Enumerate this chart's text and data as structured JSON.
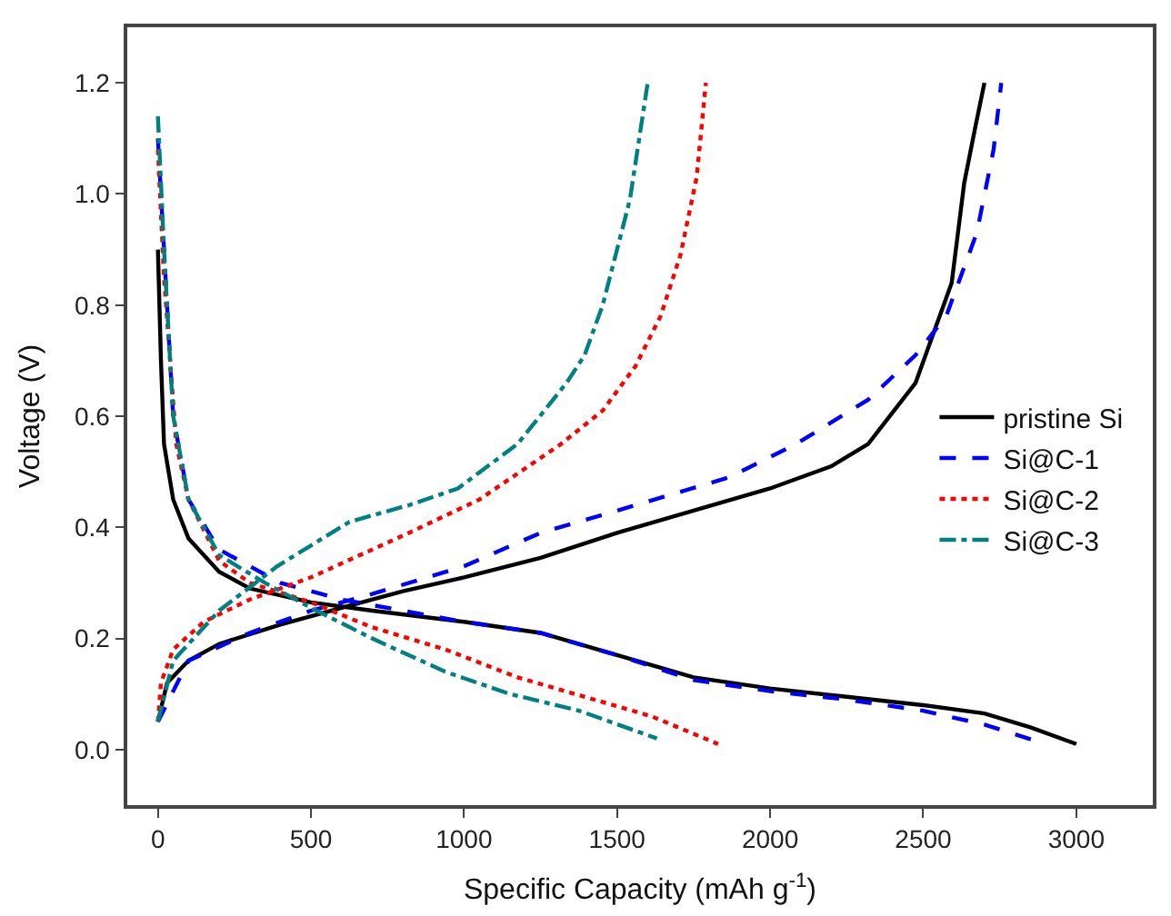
{
  "chart_data": {
    "type": "line",
    "xlabel": "Specific Capacity (mAh g$^{-1}$)",
    "ylabel": "Voltage (V)",
    "xlim": [
      -100,
      3250
    ],
    "xticks": [
      0,
      500,
      1000,
      1500,
      2000,
      2500,
      3000
    ],
    "ylim": [
      -0.1,
      1.3
    ],
    "yticks": [
      {
        "value": 0.0,
        "label": "0.0"
      },
      0.2,
      0.4,
      0.6,
      0.8,
      {
        "value": 1.0,
        "label": "1.0"
      },
      1.2
    ],
    "legend": "right",
    "marker": "none",
    "series": [
      {
        "name": "pristine Si",
        "color": "#000000",
        "line_style": "solid",
        "x": [
          0,
          10,
          20,
          50,
          100,
          200,
          300,
          500,
          700,
          1000,
          1250,
          1500,
          1750,
          2000,
          2250,
          2500,
          2700,
          2850,
          3000,
          null,
          0,
          30,
          100,
          200,
          400,
          600,
          800,
          1000,
          1250,
          1500,
          1750,
          2000,
          2200,
          2320,
          2475,
          2593,
          2634,
          2670,
          2700
        ],
        "values": [
          0.9,
          0.7,
          0.55,
          0.45,
          0.38,
          0.32,
          0.29,
          0.265,
          0.25,
          0.23,
          0.21,
          0.17,
          0.13,
          0.11,
          0.095,
          0.08,
          0.065,
          0.04,
          0.01,
          null,
          0.05,
          0.12,
          0.16,
          0.19,
          0.225,
          0.255,
          0.285,
          0.31,
          0.345,
          0.39,
          0.43,
          0.47,
          0.51,
          0.55,
          0.66,
          0.84,
          1.02,
          1.12,
          1.2
        ]
      },
      {
        "name": "Si@C-1",
        "color": "#0000ff",
        "line_style": "dashed",
        "x": [
          0,
          20,
          50,
          100,
          200,
          400,
          600,
          800,
          1000,
          1250,
          1500,
          1750,
          2000,
          2250,
          2500,
          2700,
          2900,
          null,
          0,
          100,
          300,
          500,
          700,
          1000,
          1250,
          1500,
          1866,
          2085,
          2321,
          2475,
          2575,
          2675,
          2730,
          2755
        ],
        "values": [
          1.1,
          0.9,
          0.6,
          0.45,
          0.36,
          0.3,
          0.27,
          0.25,
          0.23,
          0.21,
          0.17,
          0.125,
          0.105,
          0.09,
          0.07,
          0.045,
          0.01,
          null,
          0.05,
          0.16,
          0.21,
          0.25,
          0.28,
          0.33,
          0.39,
          0.43,
          0.49,
          0.55,
          0.63,
          0.71,
          0.78,
          0.93,
          1.08,
          1.2
        ]
      },
      {
        "name": "Si@C-2",
        "color": "#ff0000",
        "line_style": "dotted",
        "x": [
          0,
          20,
          60,
          100,
          200,
          300,
          500,
          700,
          940,
          1175,
          1394,
          1612,
          1830,
          null,
          0,
          10,
          50,
          150,
          300,
          500,
          820,
          1050,
          1317,
          1453,
          1560,
          1642,
          1707,
          1760,
          1790
        ],
        "values": [
          1.08,
          0.85,
          0.55,
          0.45,
          0.34,
          0.3,
          0.265,
          0.22,
          0.18,
          0.13,
          0.095,
          0.06,
          0.01,
          null,
          0.05,
          0.12,
          0.18,
          0.23,
          0.27,
          0.31,
          0.39,
          0.45,
          0.55,
          0.61,
          0.69,
          0.78,
          0.89,
          1.03,
          1.2
        ]
      },
      {
        "name": "Si@C-3",
        "color": "#008080",
        "line_style": "dashdot",
        "x": [
          0,
          20,
          50,
          100,
          200,
          350,
          500,
          700,
          939,
          1150,
          1376,
          1630,
          null,
          0,
          50,
          200,
          390,
          626,
          821,
          980,
          1175,
          1335,
          1394,
          1453,
          1542,
          1600
        ],
        "values": [
          1.14,
          0.9,
          0.6,
          0.45,
          0.35,
          0.3,
          0.255,
          0.2,
          0.14,
          0.1,
          0.07,
          0.02,
          null,
          0.05,
          0.16,
          0.25,
          0.33,
          0.41,
          0.44,
          0.47,
          0.55,
          0.66,
          0.71,
          0.8,
          0.99,
          1.2
        ]
      }
    ]
  }
}
